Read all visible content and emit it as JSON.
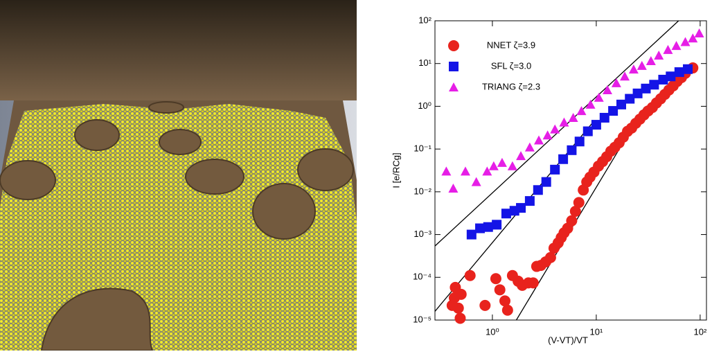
{
  "chart_data": {
    "type": "scatter",
    "xlabel": "(V-VT)/VT",
    "ylabel": "I [e/RCg]",
    "log_x": true,
    "log_y": true,
    "xlim": [
      0.28,
      115
    ],
    "ylim": [
      1e-05,
      100
    ],
    "xticks": [
      {
        "value": 1,
        "label": "10⁰"
      },
      {
        "value": 10,
        "label": "10¹"
      },
      {
        "value": 100,
        "label": "10²"
      }
    ],
    "yticks": [
      {
        "value": 1e-05,
        "label": "10⁻⁵"
      },
      {
        "value": 0.0001,
        "label": "10⁻⁴"
      },
      {
        "value": 0.001,
        "label": "10⁻³"
      },
      {
        "value": 0.01,
        "label": "10⁻²"
      },
      {
        "value": 0.1,
        "label": "10⁻¹"
      },
      {
        "value": 1,
        "label": "10⁰"
      },
      {
        "value": 10,
        "label": "10¹"
      },
      {
        "value": 100,
        "label": "10²"
      }
    ],
    "legend": "upper left",
    "series": [
      {
        "name": "NNET ζ=3.9",
        "color": "#e8231d",
        "marker": "circle",
        "x": [
          0.44,
          0.47,
          0.5,
          0.49,
          0.41,
          0.43,
          0.61,
          0.85,
          1.08,
          1.18,
          1.32,
          1.4,
          1.56,
          1.77,
          1.94,
          2.22,
          2.47,
          2.67,
          2.93,
          3.26,
          3.63,
          3.92,
          4.3,
          4.6,
          4.9,
          5.3,
          5.8,
          6.3,
          6.8,
          7.5,
          8.1,
          8.7,
          9.5,
          10.5,
          11.5,
          12.6,
          13.8,
          15.1,
          16.6,
          18.2,
          20,
          21.9,
          24,
          26.3,
          28.8,
          31.6,
          34.7,
          38,
          41.7,
          45.7,
          50,
          55,
          60,
          66,
          72,
          85
        ],
        "values": [
          5.8e-05,
          1.9e-05,
          4e-05,
          1.1e-05,
          2.2e-05,
          3.3e-05,
          0.00011,
          2.2e-05,
          9.3e-05,
          5.1e-05,
          2.8e-05,
          1.7e-05,
          0.00011,
          8.1e-05,
          6.5e-05,
          7.4e-05,
          7.4e-05,
          0.00018,
          0.00019,
          0.00023,
          0.00029,
          0.00048,
          0.00064,
          0.00085,
          0.0011,
          0.0014,
          0.0021,
          0.0035,
          0.0056,
          0.011,
          0.017,
          0.022,
          0.029,
          0.04,
          0.051,
          0.066,
          0.089,
          0.11,
          0.14,
          0.19,
          0.26,
          0.31,
          0.4,
          0.5,
          0.63,
          0.78,
          0.94,
          1.2,
          1.5,
          1.9,
          2.4,
          3.0,
          3.8,
          4.7,
          5.9,
          7.9
        ]
      },
      {
        "name": "SFL ζ=3.0",
        "color": "#1414e6",
        "marker": "square",
        "x": [
          0.63,
          0.76,
          0.91,
          1.1,
          1.36,
          1.63,
          1.88,
          2.29,
          2.75,
          3.3,
          4.0,
          4.8,
          5.8,
          6.9,
          8.3,
          10,
          12,
          14.5,
          17.4,
          21,
          25,
          30,
          36,
          44,
          52,
          63,
          76
        ],
        "values": [
          0.001,
          0.0014,
          0.0015,
          0.0017,
          0.0031,
          0.0036,
          0.0042,
          0.0061,
          0.011,
          0.017,
          0.033,
          0.058,
          0.094,
          0.15,
          0.26,
          0.37,
          0.54,
          0.78,
          1.1,
          1.5,
          2.0,
          2.6,
          3.2,
          4.2,
          5.0,
          6.3,
          7.4
        ]
      },
      {
        "name": "TRIANG ζ=2.3",
        "color": "#e61ee6",
        "marker": "triangle",
        "x": [
          0.36,
          0.42,
          0.55,
          0.7,
          0.89,
          1.03,
          1.24,
          1.56,
          1.88,
          2.29,
          2.8,
          3.4,
          4.0,
          4.9,
          6.0,
          7.2,
          8.8,
          10.6,
          12.8,
          15.6,
          18.8,
          22.9,
          27.5,
          33.6,
          40,
          49,
          59,
          72,
          85,
          98
        ],
        "values": [
          0.03,
          0.012,
          0.03,
          0.017,
          0.03,
          0.04,
          0.048,
          0.04,
          0.069,
          0.11,
          0.16,
          0.21,
          0.29,
          0.42,
          0.54,
          0.78,
          1.1,
          1.6,
          2.4,
          3.5,
          5.0,
          7.3,
          8.9,
          11.5,
          15.5,
          21,
          26,
          32,
          39,
          51
        ]
      }
    ],
    "lines": [
      {
        "color": "#000000",
        "x": [
          0.28,
          62
        ],
        "values": [
          0.00054,
          100
        ]
      },
      {
        "color": "#000000",
        "x": [
          0.28,
          9.5
        ],
        "values": [
          1.6e-05,
          0.45
        ]
      },
      {
        "color": "#000000",
        "x": [
          1.7,
          29
        ],
        "values": [
          1e-05,
          0.94
        ]
      }
    ]
  }
}
